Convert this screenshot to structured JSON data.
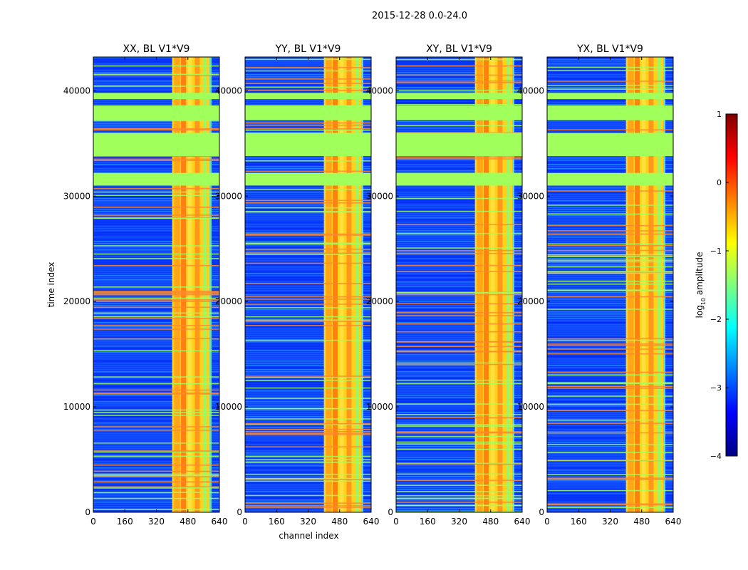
{
  "figure_title": "2015-12-28 0.0-24.0",
  "colors": {
    "background": "#ffffff",
    "frame": "#000000",
    "flag_stripe": "#a0ff5a",
    "hot_stripe": "#ff7a1a"
  },
  "chart_data": [
    {
      "type": "heatmap",
      "title": "XX, BL V1*V9",
      "xlabel": "",
      "ylabel": "time index",
      "xlim": [
        0,
        640
      ],
      "ylim": [
        0,
        43200
      ],
      "xticks": [
        0,
        160,
        320,
        480,
        640
      ],
      "yticks": [
        0,
        10000,
        20000,
        30000,
        40000
      ],
      "high_amplitude_channel_range": [
        400,
        600
      ],
      "flagged_time_ranges": [
        [
          31000,
          32200
        ],
        [
          33800,
          36000
        ],
        [
          37200,
          38600
        ],
        [
          39200,
          39800
        ]
      ]
    },
    {
      "type": "heatmap",
      "title": "YY, BL V1*V9",
      "xlabel": "channel index",
      "ylabel": "",
      "xlim": [
        0,
        640
      ],
      "ylim": [
        0,
        43200
      ],
      "xticks": [
        0,
        160,
        320,
        480,
        640
      ],
      "yticks": [
        0,
        10000,
        20000,
        30000,
        40000
      ],
      "high_amplitude_channel_range": [
        400,
        600
      ],
      "flagged_time_ranges": [
        [
          31000,
          32200
        ],
        [
          33800,
          36000
        ],
        [
          37200,
          38600
        ],
        [
          39200,
          39800
        ]
      ]
    },
    {
      "type": "heatmap",
      "title": "XY, BL V1*V9",
      "xlabel": "",
      "ylabel": "",
      "xlim": [
        0,
        640
      ],
      "ylim": [
        0,
        43200
      ],
      "xticks": [
        0,
        160,
        320,
        480,
        640
      ],
      "yticks": [
        0,
        10000,
        20000,
        30000,
        40000
      ],
      "high_amplitude_channel_range": [
        400,
        600
      ],
      "flagged_time_ranges": [
        [
          31000,
          32200
        ],
        [
          33800,
          36000
        ],
        [
          37200,
          38600
        ],
        [
          39200,
          39800
        ]
      ]
    },
    {
      "type": "heatmap",
      "title": "YX, BL V1*V9",
      "xlabel": "",
      "ylabel": "",
      "xlim": [
        0,
        640
      ],
      "ylim": [
        0,
        43200
      ],
      "xticks": [
        0,
        160,
        320,
        480,
        640
      ],
      "yticks": [
        0,
        10000,
        20000,
        30000,
        40000
      ],
      "high_amplitude_channel_range": [
        400,
        600
      ],
      "flagged_time_ranges": [
        [
          31000,
          32200
        ],
        [
          33800,
          36000
        ],
        [
          37200,
          38600
        ],
        [
          39200,
          39800
        ]
      ]
    }
  ],
  "colorbar": {
    "label_prefix": "log",
    "label_sub": "10",
    "label_suffix": " amplitude",
    "range": [
      -4,
      1
    ],
    "ticks": [
      1,
      0,
      -1,
      -2,
      -3,
      -4
    ],
    "tick_labels": [
      "1",
      "0",
      "−1",
      "−2",
      "−3",
      "−4"
    ],
    "colormap": "jet",
    "jet_stops": [
      "#00007f",
      "#0000ff",
      "#007fff",
      "#00ffff",
      "#7fff7f",
      "#ffff00",
      "#ff7f00",
      "#ff0000",
      "#7f0000"
    ]
  }
}
